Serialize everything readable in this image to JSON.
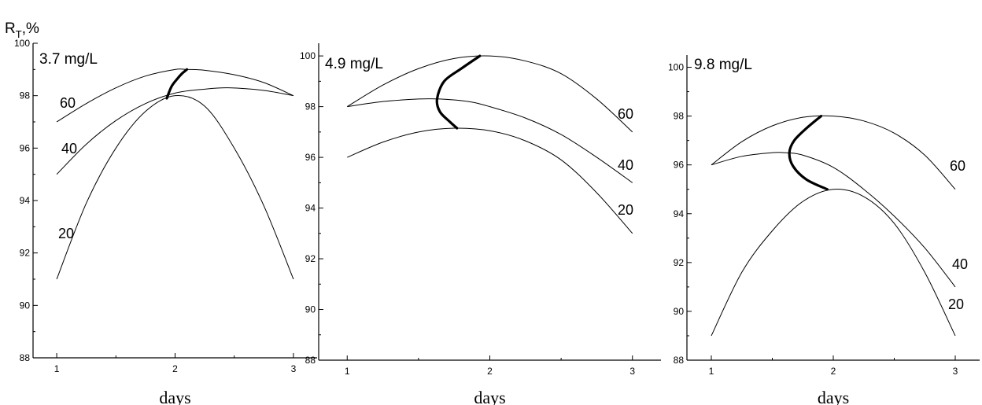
{
  "figure": {
    "ylabel_main": "R",
    "ylabel_sub": "T",
    "ylabel_suffix": ",%"
  },
  "chart_data": [
    {
      "type": "line",
      "title": "3.7 mg/L",
      "xlabel": "days",
      "xlim": [
        0.8,
        3.2
      ],
      "ylim": [
        88,
        100
      ],
      "xticks": [
        1,
        2,
        3
      ],
      "yticks": [
        88,
        90,
        92,
        94,
        96,
        98,
        100
      ],
      "series": [
        {
          "name": "60",
          "x": [
            1.0,
            1.25,
            1.5,
            1.75,
            2.0,
            2.1,
            2.25,
            2.5,
            2.75,
            3.0
          ],
          "y": [
            97.0,
            97.7,
            98.3,
            98.75,
            99.0,
            99.0,
            98.97,
            98.8,
            98.5,
            98.0
          ]
        },
        {
          "name": "40",
          "x": [
            1.0,
            1.25,
            1.5,
            1.75,
            2.0,
            2.25,
            2.45,
            2.75,
            3.0
          ],
          "y": [
            95.0,
            96.15,
            97.05,
            97.7,
            98.1,
            98.25,
            98.3,
            98.2,
            98.0
          ]
        },
        {
          "name": "20",
          "x": [
            1.0,
            1.25,
            1.5,
            1.75,
            2.0,
            2.25,
            2.5,
            2.75,
            3.0
          ],
          "y": [
            91.0,
            93.9,
            96.0,
            97.4,
            98.0,
            97.6,
            96.0,
            93.8,
            91.0
          ]
        }
      ],
      "boundary": {
        "x": [
          1.93,
          1.97,
          2.02,
          2.06,
          2.1
        ],
        "y": [
          97.9,
          98.35,
          98.65,
          98.85,
          99.0
        ]
      },
      "labels": [
        {
          "text": "60",
          "series": "60"
        },
        {
          "text": "40",
          "series": "40"
        },
        {
          "text": "20",
          "series": "20"
        }
      ]
    },
    {
      "type": "line",
      "title": "4.9 mg/L",
      "xlabel": "days",
      "xlim": [
        0.8,
        3.2
      ],
      "ylim": [
        88,
        100.5
      ],
      "xticks": [
        1,
        2,
        3
      ],
      "yticks": [
        88,
        90,
        92,
        94,
        96,
        98,
        100
      ],
      "series": [
        {
          "name": "60",
          "x": [
            1.0,
            1.25,
            1.5,
            1.75,
            2.0,
            2.25,
            2.5,
            2.75,
            3.0
          ],
          "y": [
            98.0,
            98.85,
            99.5,
            99.9,
            100.0,
            99.8,
            99.3,
            98.3,
            97.0
          ]
        },
        {
          "name": "40",
          "x": [
            1.0,
            1.25,
            1.5,
            1.65,
            1.85,
            2.0,
            2.25,
            2.5,
            2.75,
            3.0
          ],
          "y": [
            98.0,
            98.2,
            98.3,
            98.3,
            98.2,
            98.0,
            97.55,
            96.9,
            96.0,
            95.0
          ]
        },
        {
          "name": "20",
          "x": [
            1.0,
            1.25,
            1.5,
            1.75,
            2.0,
            2.25,
            2.5,
            2.75,
            3.0
          ],
          "y": [
            96.0,
            96.6,
            97.0,
            97.15,
            97.05,
            96.65,
            95.9,
            94.6,
            93.0
          ]
        }
      ],
      "boundary": {
        "x": [
          1.93,
          1.8,
          1.68,
          1.63,
          1.65,
          1.72,
          1.77
        ],
        "y": [
          100.0,
          99.5,
          99.0,
          98.3,
          97.8,
          97.4,
          97.15
        ]
      },
      "labels": [
        {
          "text": "60",
          "series": "60"
        },
        {
          "text": "40",
          "series": "40"
        },
        {
          "text": "20",
          "series": "20"
        }
      ]
    },
    {
      "type": "line",
      "title": "9.8 mg/L",
      "xlabel": "days",
      "xlim": [
        0.8,
        3.2
      ],
      "ylim": [
        88,
        100.5
      ],
      "xticks": [
        1,
        2,
        3
      ],
      "yticks": [
        88,
        90,
        92,
        94,
        96,
        98,
        100
      ],
      "series": [
        {
          "name": "60",
          "x": [
            1.0,
            1.25,
            1.5,
            1.75,
            2.0,
            2.25,
            2.5,
            2.75,
            3.0
          ],
          "y": [
            96.0,
            96.95,
            97.6,
            97.95,
            98.0,
            97.8,
            97.3,
            96.4,
            95.0
          ]
        },
        {
          "name": "40",
          "x": [
            1.0,
            1.25,
            1.5,
            1.6,
            1.75,
            2.0,
            2.25,
            2.5,
            2.75,
            3.0
          ],
          "y": [
            96.0,
            96.35,
            96.5,
            96.5,
            96.4,
            95.9,
            95.0,
            93.9,
            92.6,
            91.0
          ]
        },
        {
          "name": "20",
          "x": [
            1.0,
            1.25,
            1.5,
            1.75,
            2.0,
            2.25,
            2.5,
            2.75,
            3.0
          ],
          "y": [
            89.0,
            91.6,
            93.3,
            94.5,
            95.0,
            94.7,
            93.6,
            91.6,
            89.0
          ]
        }
      ],
      "boundary": {
        "x": [
          1.9,
          1.78,
          1.68,
          1.64,
          1.67,
          1.78,
          1.95
        ],
        "y": [
          98.0,
          97.5,
          97.0,
          96.5,
          95.95,
          95.4,
          95.0
        ]
      },
      "labels": [
        {
          "text": "60",
          "series": "60"
        },
        {
          "text": "40",
          "series": "40"
        },
        {
          "text": "20",
          "series": "20"
        }
      ]
    }
  ]
}
